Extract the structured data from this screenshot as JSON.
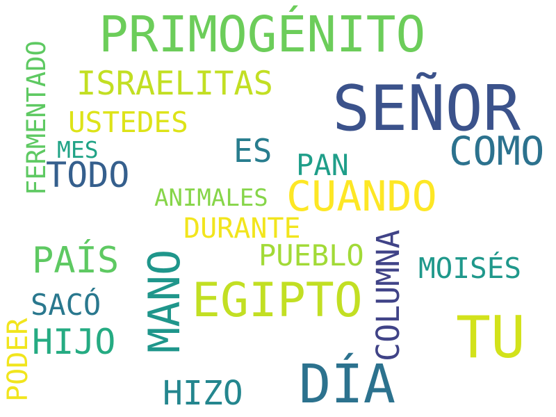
{
  "words": [
    {
      "text": "PRIMOGÉNITO",
      "color": "#6ccd5a"
    },
    {
      "text": "SEÑOR",
      "color": "#3b528b"
    },
    {
      "text": "ISRAELITAS",
      "color": "#c2df23"
    },
    {
      "text": "USTEDES",
      "color": "#dde318"
    },
    {
      "text": "COMO",
      "color": "#2c728e"
    },
    {
      "text": "ES",
      "color": "#287d8e"
    },
    {
      "text": "MES",
      "color": "#20a386"
    },
    {
      "text": "TODO",
      "color": "#355f8d"
    },
    {
      "text": "PAN",
      "color": "#1f9e89"
    },
    {
      "text": "FERMENTADO",
      "color": "#5ec962"
    },
    {
      "text": "ANIMALES",
      "color": "#86d549"
    },
    {
      "text": "CUANDO",
      "color": "#fde725"
    },
    {
      "text": "DURANTE",
      "color": "#f2e51d"
    },
    {
      "text": "PAÍS",
      "color": "#5ec962"
    },
    {
      "text": "PUEBLO",
      "color": "#a2da37"
    },
    {
      "text": "MANO",
      "color": "#1f968b"
    },
    {
      "text": "EGIPTO",
      "color": "#c2df23"
    },
    {
      "text": "MOISÉS",
      "color": "#1f988b"
    },
    {
      "text": "COLUMNA",
      "color": "#404387"
    },
    {
      "text": "SACÓ",
      "color": "#2a788e"
    },
    {
      "text": "HIJO",
      "color": "#25ab82"
    },
    {
      "text": "TU",
      "color": "#d2e21b"
    },
    {
      "text": "PODER",
      "color": "#f1e51d"
    },
    {
      "text": "HIZO",
      "color": "#24868e"
    },
    {
      "text": "DÍA",
      "color": "#2c728e"
    }
  ]
}
